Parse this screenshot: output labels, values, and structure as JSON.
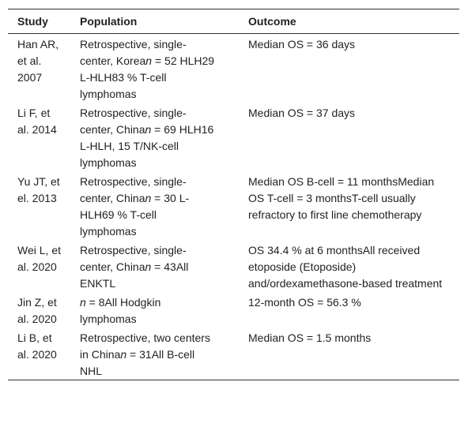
{
  "table": {
    "header": [
      "Study",
      "Population",
      "Outcome"
    ],
    "rows": [
      [
        [
          "Han AR, et al. 2007"
        ],
        [
          "Retrospective, single-center, Korea",
          {
            "text": "n",
            "italic": true
          },
          " = 52 HLH29 L-HLH83 % T-cell lymphomas"
        ],
        [
          "Median OS = 36 days"
        ]
      ],
      [
        [
          "Li F, et al. 2014"
        ],
        [
          "Retrospective, single-center, China",
          {
            "text": "n",
            "italic": true
          },
          " = 69 HLH16 L-HLH, 15 T/NK-cell lymphomas"
        ],
        [
          "Median OS = 37 days"
        ]
      ],
      [
        [
          "Yu JT, et el. 2013"
        ],
        [
          "Retrospective, single-center, China",
          {
            "text": "n",
            "italic": true
          },
          " = 30 L-HLH69 % T-cell lymphomas"
        ],
        [
          "Median OS B-cell = 11 monthsMedian OS T-cell = 3 monthsT-cell usually refractory to first line chemotherapy"
        ]
      ],
      [
        [
          "Wei L, et al. 2020"
        ],
        [
          "Retrospective, single-center, China",
          {
            "text": "n",
            "italic": true
          },
          " = 43All ENKTL"
        ],
        [
          "OS 34.4 % at 6 monthsAll received etoposide (Etoposide) and/ordexamethasone-based treatment"
        ]
      ],
      [
        [
          "Jin Z, et al. 2020"
        ],
        [
          {
            "text": "n",
            "italic": true
          },
          " = 8All Hodgkin lymphomas"
        ],
        [
          "12-month OS = 56.3 %"
        ]
      ],
      [
        [
          "Li B, et al. 2020"
        ],
        [
          "Retrospective, two centers in China",
          {
            "text": "n",
            "italic": true
          },
          " = 31All B-cell NHL"
        ],
        [
          "Median OS = 1.5 months"
        ]
      ]
    ]
  }
}
